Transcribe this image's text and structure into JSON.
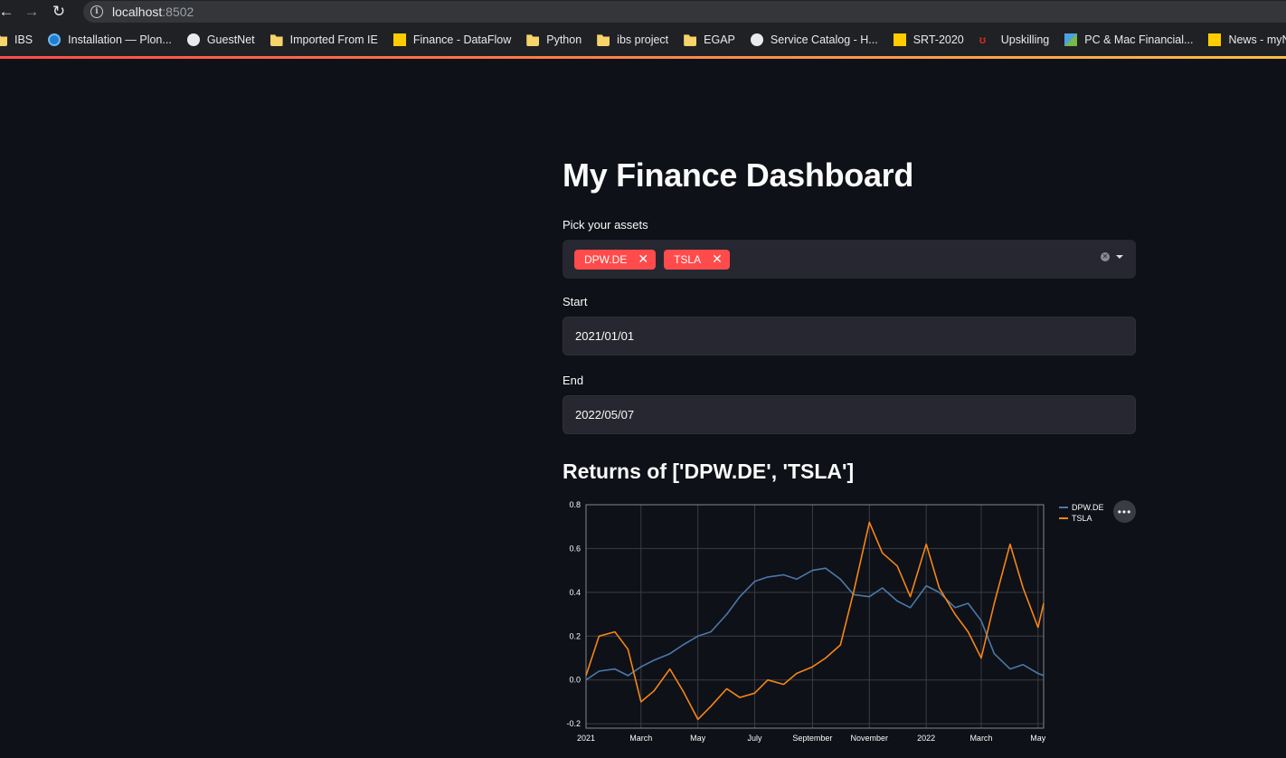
{
  "browser": {
    "url_host": "localhost",
    "url_port": ":8502",
    "bookmarks": [
      {
        "label": "IBS",
        "icon": "folder-icon"
      },
      {
        "label": "Installation — Plon...",
        "icon": "plone-icon"
      },
      {
        "label": "GuestNet",
        "icon": "globe-icon"
      },
      {
        "label": "Imported From IE",
        "icon": "folder-icon"
      },
      {
        "label": "Finance - DataFlow",
        "icon": "dhl-icon"
      },
      {
        "label": "Python",
        "icon": "folder-icon"
      },
      {
        "label": "ibs project",
        "icon": "folder-icon"
      },
      {
        "label": "EGAP",
        "icon": "folder-icon"
      },
      {
        "label": "Service Catalog - H...",
        "icon": "globe-icon"
      },
      {
        "label": "SRT-2020",
        "icon": "dhl-icon"
      },
      {
        "label": "Upskilling",
        "icon": "up-icon"
      },
      {
        "label": "PC & Mac Financial...",
        "icon": "pcmac-icon"
      },
      {
        "label": "News - myNet - te...",
        "icon": "mynet-icon"
      }
    ]
  },
  "app": {
    "title": "My Finance Dashboard",
    "assets_label": "Pick your assets",
    "selected_assets": [
      "DPW.DE",
      "TSLA"
    ],
    "start_label": "Start",
    "start_value": "2021/01/01",
    "end_label": "End",
    "end_value": "2022/05/07",
    "chart_title": "Returns of ['DPW.DE', 'TSLA']"
  },
  "colors": {
    "accent": "#ff4b4b",
    "dpw_series": "#4c78a8",
    "tsla_series": "#f58518",
    "background": "#0e1117"
  },
  "chart_data": {
    "type": "line",
    "x_tick_labels": [
      "2021",
      "March",
      "May",
      "July",
      "September",
      "November",
      "2022",
      "March",
      "May"
    ],
    "x_tick_dates": [
      "2021-01-01",
      "2021-03-01",
      "2021-05-01",
      "2021-07-01",
      "2021-09-01",
      "2021-11-01",
      "2022-01-01",
      "2022-03-01",
      "2022-05-01"
    ],
    "ylim": [
      -0.22,
      0.8
    ],
    "y_ticks": [
      -0.2,
      0.0,
      0.2,
      0.4,
      0.6,
      0.8
    ],
    "grid": true,
    "legend_position": "top-right",
    "x": [
      "2021-01-01",
      "2021-01-15",
      "2021-02-01",
      "2021-02-15",
      "2021-03-01",
      "2021-03-15",
      "2021-04-01",
      "2021-04-15",
      "2021-05-01",
      "2021-05-15",
      "2021-06-01",
      "2021-06-15",
      "2021-07-01",
      "2021-07-15",
      "2021-08-01",
      "2021-08-15",
      "2021-09-01",
      "2021-09-15",
      "2021-10-01",
      "2021-10-15",
      "2021-11-01",
      "2021-11-15",
      "2021-12-01",
      "2021-12-15",
      "2022-01-01",
      "2022-01-15",
      "2022-02-01",
      "2022-02-15",
      "2022-03-01",
      "2022-03-15",
      "2022-04-01",
      "2022-04-15",
      "2022-05-01",
      "2022-05-07"
    ],
    "series": [
      {
        "name": "DPW.DE",
        "values": [
          0.0,
          0.04,
          0.05,
          0.02,
          0.06,
          0.09,
          0.12,
          0.16,
          0.2,
          0.22,
          0.3,
          0.38,
          0.45,
          0.47,
          0.48,
          0.46,
          0.5,
          0.51,
          0.46,
          0.39,
          0.38,
          0.42,
          0.36,
          0.33,
          0.43,
          0.4,
          0.33,
          0.35,
          0.27,
          0.12,
          0.05,
          0.07,
          0.03,
          0.02
        ]
      },
      {
        "name": "TSLA",
        "values": [
          0.02,
          0.2,
          0.22,
          0.14,
          -0.1,
          -0.05,
          0.05,
          -0.05,
          -0.18,
          -0.12,
          -0.04,
          -0.08,
          -0.06,
          0.0,
          -0.02,
          0.03,
          0.06,
          0.1,
          0.16,
          0.4,
          0.72,
          0.58,
          0.52,
          0.38,
          0.62,
          0.42,
          0.3,
          0.22,
          0.1,
          0.35,
          0.62,
          0.42,
          0.24,
          0.35
        ]
      }
    ]
  }
}
